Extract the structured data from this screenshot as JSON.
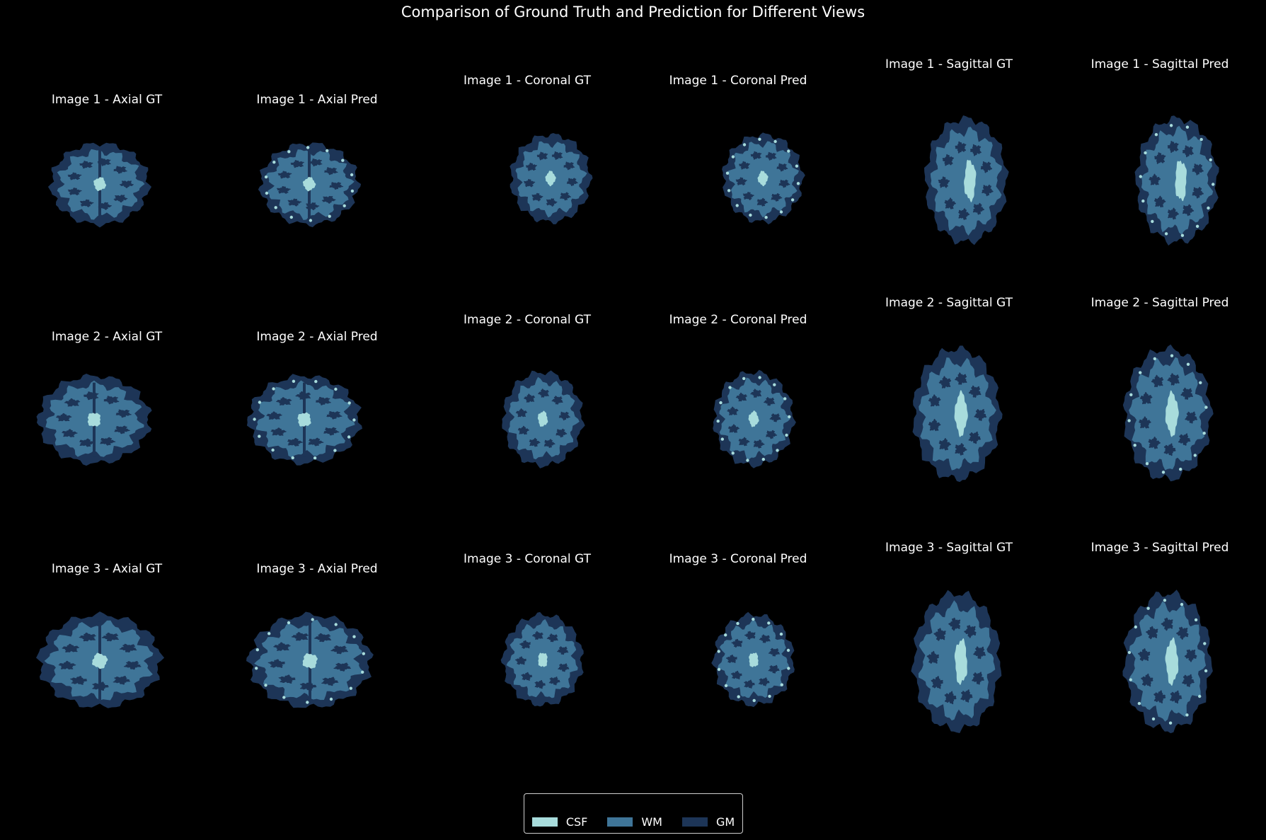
{
  "title": "Comparison of Ground Truth and Prediction for Different Views",
  "colors": {
    "background": "#000000",
    "CSF": "#a8dcdc",
    "WM": "#3f7598",
    "GM": "#1d3557"
  },
  "panels": [
    {
      "title": "Image 1 - Axial GT",
      "view": "axial",
      "kind": "gt"
    },
    {
      "title": "Image 1 - Axial Pred",
      "view": "axial",
      "kind": "pred"
    },
    {
      "title": "Image 1 - Coronal GT",
      "view": "coronal",
      "kind": "gt"
    },
    {
      "title": "Image 1 - Coronal Pred",
      "view": "coronal",
      "kind": "pred"
    },
    {
      "title": "Image 1 - Sagittal GT",
      "view": "sagittal",
      "kind": "gt"
    },
    {
      "title": "Image 1 - Sagittal Pred",
      "view": "sagittal",
      "kind": "pred"
    },
    {
      "title": "Image 2 - Axial GT",
      "view": "axial",
      "kind": "gt"
    },
    {
      "title": "Image 2 - Axial Pred",
      "view": "axial",
      "kind": "pred"
    },
    {
      "title": "Image 2 - Coronal GT",
      "view": "coronal",
      "kind": "gt"
    },
    {
      "title": "Image 2 - Coronal Pred",
      "view": "coronal",
      "kind": "pred"
    },
    {
      "title": "Image 2 - Sagittal GT",
      "view": "sagittal",
      "kind": "gt"
    },
    {
      "title": "Image 2 - Sagittal Pred",
      "view": "sagittal",
      "kind": "pred"
    },
    {
      "title": "Image 3 - Axial GT",
      "view": "axial",
      "kind": "gt"
    },
    {
      "title": "Image 3 - Axial Pred",
      "view": "axial",
      "kind": "pred"
    },
    {
      "title": "Image 3 - Coronal GT",
      "view": "coronal",
      "kind": "gt"
    },
    {
      "title": "Image 3 - Coronal Pred",
      "view": "coronal",
      "kind": "pred"
    },
    {
      "title": "Image 3 - Sagittal GT",
      "view": "sagittal",
      "kind": "gt"
    },
    {
      "title": "Image 3 - Sagittal Pred",
      "view": "sagittal",
      "kind": "pred"
    }
  ],
  "legend": [
    {
      "label": "CSF",
      "color": "#a8dcdc"
    },
    {
      "label": "WM",
      "color": "#3f7598"
    },
    {
      "label": "GM",
      "color": "#1d3557"
    }
  ]
}
